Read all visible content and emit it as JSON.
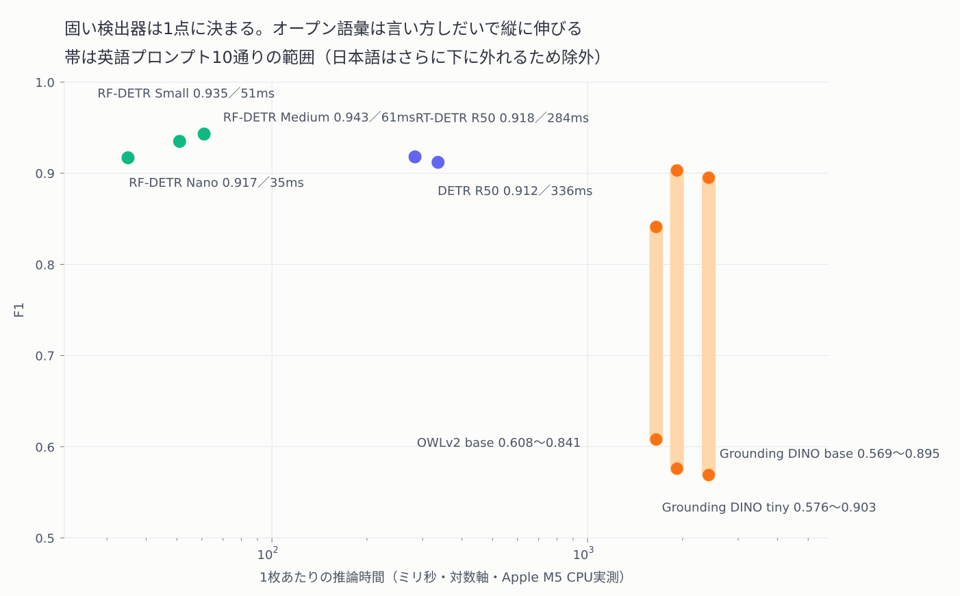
{
  "chart_data": {
    "type": "scatter",
    "title": "固い検出器は1点に決まる。オープン語彙は言い方しだいで縦に伸びる",
    "subtitle": "帯は英語プロンプト10通りの範囲（日本語はさらに下に外れるため除外）",
    "xlabel": "1枚あたりの推論時間（ミリ秒・対数軸・Apple M5 CPU実測）",
    "ylabel": "F1",
    "x_scale": "log",
    "xlim": [
      22,
      5800
    ],
    "ylim": [
      0.5,
      1.0
    ],
    "yticks": [
      "0.5",
      "0.6",
      "0.7",
      "0.8",
      "0.9",
      "1.0"
    ],
    "xticks": [
      {
        "value": 100,
        "base": "10",
        "exp": "2"
      },
      {
        "value": 1000,
        "base": "10",
        "exp": "3"
      }
    ],
    "grid": true,
    "colors": {
      "rf_detr": "#10b981",
      "detr": "#6366f1",
      "open_vocab": "#f97316",
      "band": "#fed7aa",
      "grid": "#e3e6ee",
      "text": "#4b5563"
    },
    "points": [
      {
        "group": "rf_detr",
        "x": 35,
        "y": 0.917
      },
      {
        "group": "rf_detr",
        "x": 51,
        "y": 0.935
      },
      {
        "group": "rf_detr",
        "x": 61,
        "y": 0.943
      },
      {
        "group": "detr",
        "x": 284,
        "y": 0.918
      },
      {
        "group": "detr",
        "x": 336,
        "y": 0.912
      }
    ],
    "bands": [
      {
        "x": 1650,
        "ymin": 0.608,
        "ymax": 0.841
      },
      {
        "x": 1920,
        "ymin": 0.576,
        "ymax": 0.903
      },
      {
        "x": 2420,
        "ymin": 0.569,
        "ymax": 0.895
      }
    ],
    "annotations": [
      {
        "text": "RF-DETR Small  0.935／51ms",
        "x": 28,
        "y": 0.983
      },
      {
        "text": "RF-DETR Medium  0.943／61ms",
        "x": 70,
        "y": 0.957
      },
      {
        "text": "RF-DETR Nano  0.917／35ms",
        "x": 35.2,
        "y": 0.885
      },
      {
        "text": "RT-DETR R50  0.918／284ms",
        "x": 285,
        "y": 0.956
      },
      {
        "text": "DETR R50  0.912／336ms",
        "x": 335,
        "y": 0.876
      },
      {
        "text": "OWLv2 base  0.608〜0.841",
        "x": 288,
        "y": 0.6
      },
      {
        "text": "Grounding DINO base  0.569〜0.895",
        "x": 2620,
        "y": 0.588
      },
      {
        "text": "Grounding DINO tiny  0.576〜0.903",
        "x": 1720,
        "y": 0.529
      }
    ]
  }
}
